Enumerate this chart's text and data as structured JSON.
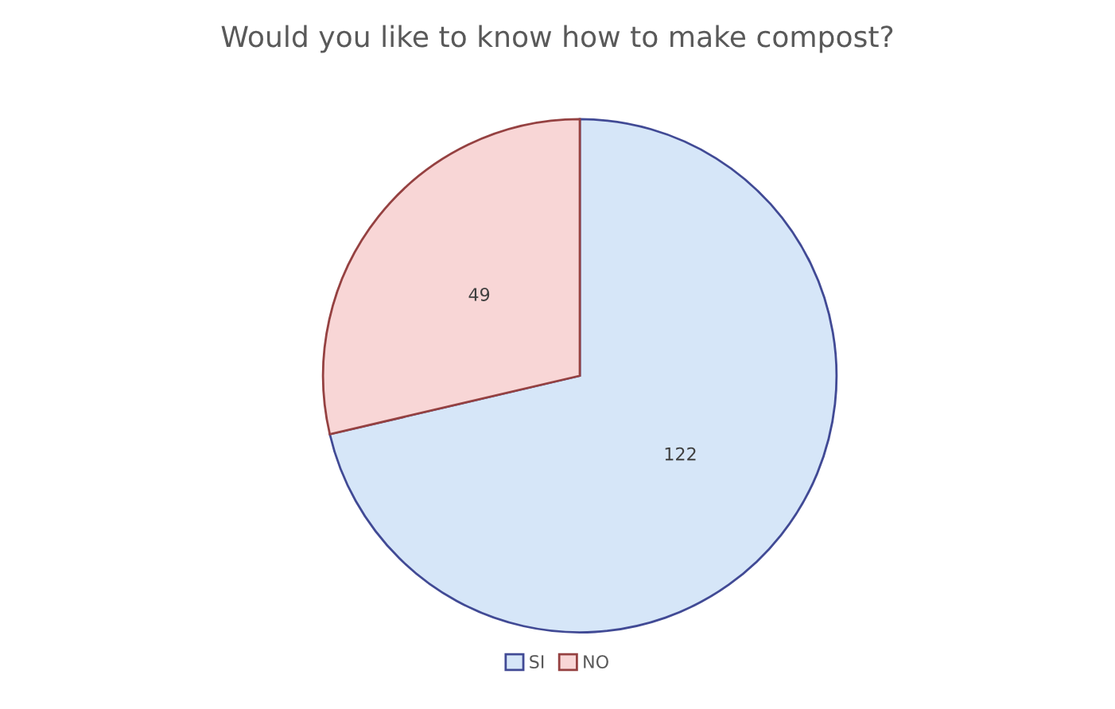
{
  "chart_data": {
    "type": "pie",
    "title": "Would you like to know how to make compost?",
    "categories": [
      "SI",
      "NO"
    ],
    "values": [
      122,
      49
    ],
    "colors": [
      "#d6e6f8",
      "#f8d6d6"
    ],
    "data_labels": true,
    "legend": "bottom"
  }
}
